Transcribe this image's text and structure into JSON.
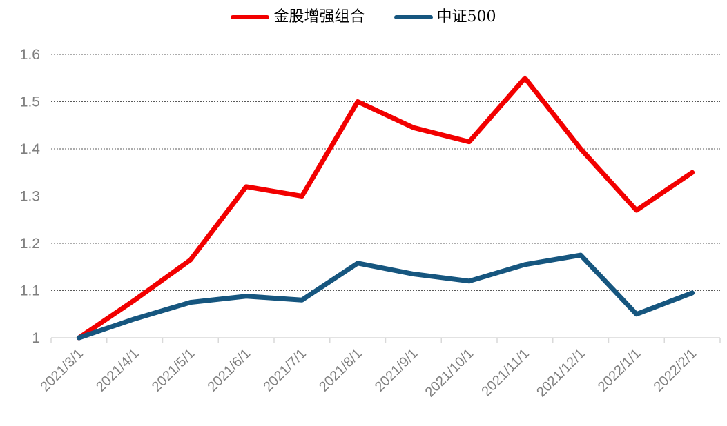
{
  "chart_data": {
    "type": "line",
    "title": "",
    "xlabel": "",
    "ylabel": "",
    "x": [
      "2021/3/1",
      "2021/4/1",
      "2021/5/1",
      "2021/6/1",
      "2021/7/1",
      "2021/8/1",
      "2021/9/1",
      "2021/10/1",
      "2021/11/1",
      "2021/12/1",
      "2022/1/1",
      "2022/2/1"
    ],
    "series": [
      {
        "name": "金股增强组合",
        "color": "#F20000",
        "values": [
          1.0,
          1.08,
          1.165,
          1.32,
          1.3,
          1.5,
          1.445,
          1.415,
          1.55,
          1.4,
          1.27,
          1.35
        ]
      },
      {
        "name": "中证500",
        "color": "#16567F",
        "values": [
          1.0,
          1.04,
          1.075,
          1.088,
          1.08,
          1.158,
          1.135,
          1.12,
          1.155,
          1.175,
          1.05,
          1.095
        ]
      }
    ],
    "ylim": [
      1,
      1.6
    ],
    "yticks": [
      1,
      1.1,
      1.2,
      1.3,
      1.4,
      1.5,
      1.6
    ],
    "ytick_labels": [
      "1",
      "1.1",
      "1.2",
      "1.3",
      "1.4",
      "1.5",
      "1.6"
    ],
    "grid": "horizontal dotted",
    "legend_position": "top-center",
    "x_label_rotation_deg": -45,
    "colors": {
      "gridline": "#595959",
      "axis_line": "#D9D9D9",
      "tick_label": "#7F7F7F"
    }
  }
}
